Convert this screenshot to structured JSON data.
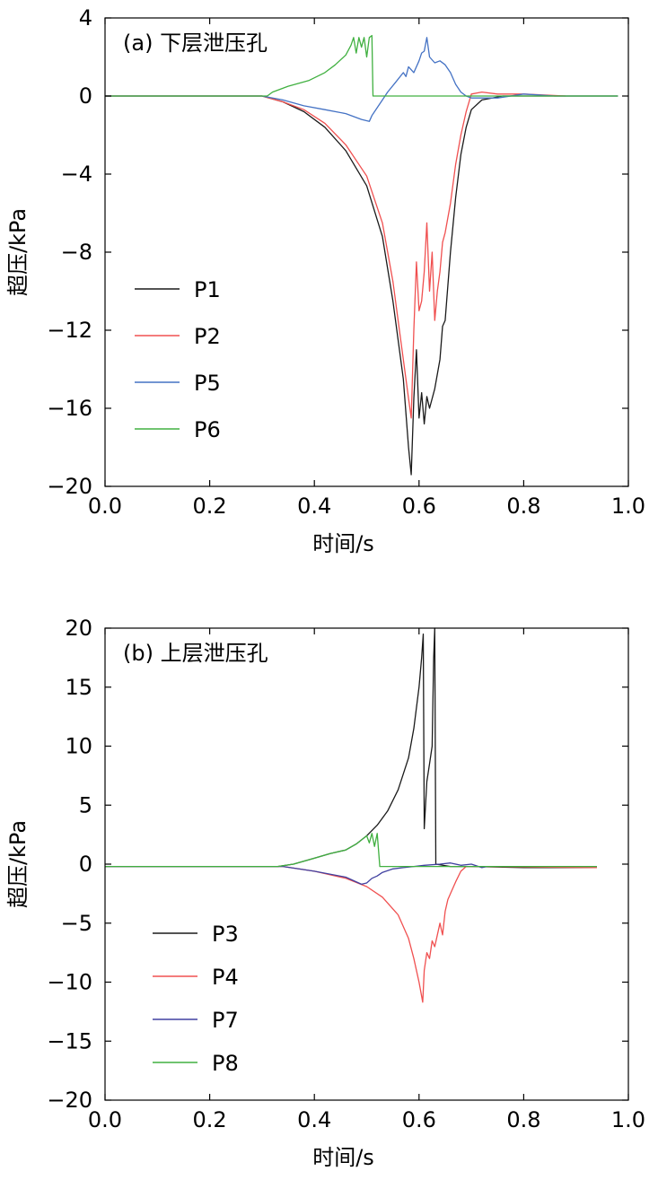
{
  "chart_data": [
    {
      "type": "line",
      "panel_label": "(a) 下层泄压孔",
      "xlabel": "时间/s",
      "ylabel": "超压/kPa",
      "xlim": [
        0,
        1.0
      ],
      "ylim": [
        -20,
        4
      ],
      "xticks": [
        "0.0",
        "0.2",
        "0.4",
        "0.6",
        "0.8",
        "1.0"
      ],
      "yticks": [
        "4",
        "0",
        "−4",
        "−8",
        "−12",
        "−16",
        "−20"
      ],
      "legend_position": "left",
      "series": [
        {
          "name": "P1",
          "color": "#1a1a1a",
          "points": [
            [
              0.0,
              0
            ],
            [
              0.3,
              0
            ],
            [
              0.34,
              -0.3
            ],
            [
              0.38,
              -0.8
            ],
            [
              0.42,
              -1.6
            ],
            [
              0.46,
              -2.8
            ],
            [
              0.5,
              -4.6
            ],
            [
              0.53,
              -7.2
            ],
            [
              0.55,
              -10.5
            ],
            [
              0.57,
              -14.5
            ],
            [
              0.58,
              -18.0
            ],
            [
              0.585,
              -19.4
            ],
            [
              0.59,
              -15.5
            ],
            [
              0.595,
              -13.0
            ],
            [
              0.6,
              -16.5
            ],
            [
              0.605,
              -15.2
            ],
            [
              0.61,
              -16.8
            ],
            [
              0.615,
              -15.4
            ],
            [
              0.62,
              -16.0
            ],
            [
              0.63,
              -15.0
            ],
            [
              0.64,
              -13.5
            ],
            [
              0.645,
              -11.8
            ],
            [
              0.65,
              -11.5
            ],
            [
              0.66,
              -8.0
            ],
            [
              0.67,
              -5.2
            ],
            [
              0.68,
              -3.0
            ],
            [
              0.69,
              -1.6
            ],
            [
              0.7,
              -0.7
            ],
            [
              0.72,
              -0.2
            ],
            [
              0.76,
              0
            ],
            [
              0.98,
              0
            ]
          ]
        },
        {
          "name": "P2",
          "color": "#f05050",
          "points": [
            [
              0.0,
              0
            ],
            [
              0.3,
              0
            ],
            [
              0.34,
              -0.3
            ],
            [
              0.38,
              -0.7
            ],
            [
              0.42,
              -1.4
            ],
            [
              0.46,
              -2.5
            ],
            [
              0.5,
              -4.1
            ],
            [
              0.53,
              -6.5
            ],
            [
              0.55,
              -9.5
            ],
            [
              0.565,
              -12.5
            ],
            [
              0.58,
              -15.5
            ],
            [
              0.585,
              -16.5
            ],
            [
              0.59,
              -12.0
            ],
            [
              0.595,
              -8.5
            ],
            [
              0.6,
              -11.0
            ],
            [
              0.605,
              -10.5
            ],
            [
              0.61,
              -9.0
            ],
            [
              0.615,
              -6.5
            ],
            [
              0.62,
              -10.0
            ],
            [
              0.625,
              -8.0
            ],
            [
              0.63,
              -11.5
            ],
            [
              0.635,
              -10.0
            ],
            [
              0.64,
              -9.0
            ],
            [
              0.645,
              -7.5
            ],
            [
              0.65,
              -7.0
            ],
            [
              0.66,
              -5.5
            ],
            [
              0.67,
              -3.5
            ],
            [
              0.68,
              -2.0
            ],
            [
              0.69,
              -0.8
            ],
            [
              0.7,
              0.1
            ],
            [
              0.72,
              0.2
            ],
            [
              0.75,
              0.1
            ],
            [
              0.8,
              0.1
            ],
            [
              0.88,
              0.0
            ]
          ]
        },
        {
          "name": "P5",
          "color": "#4472c4",
          "points": [
            [
              0.0,
              0
            ],
            [
              0.3,
              0
            ],
            [
              0.34,
              -0.2
            ],
            [
              0.38,
              -0.5
            ],
            [
              0.42,
              -0.7
            ],
            [
              0.46,
              -0.9
            ],
            [
              0.49,
              -1.2
            ],
            [
              0.505,
              -1.3
            ],
            [
              0.51,
              -1.0
            ],
            [
              0.52,
              -0.6
            ],
            [
              0.53,
              -0.2
            ],
            [
              0.54,
              0.2
            ],
            [
              0.555,
              0.7
            ],
            [
              0.57,
              1.2
            ],
            [
              0.575,
              1.0
            ],
            [
              0.58,
              1.5
            ],
            [
              0.59,
              1.2
            ],
            [
              0.6,
              1.8
            ],
            [
              0.605,
              2.2
            ],
            [
              0.61,
              2.3
            ],
            [
              0.615,
              3.0
            ],
            [
              0.62,
              2.0
            ],
            [
              0.63,
              1.7
            ],
            [
              0.64,
              1.8
            ],
            [
              0.65,
              1.6
            ],
            [
              0.66,
              1.2
            ],
            [
              0.67,
              0.6
            ],
            [
              0.68,
              0.2
            ],
            [
              0.69,
              0
            ],
            [
              0.7,
              -0.1
            ],
            [
              0.75,
              -0.1
            ],
            [
              0.8,
              0.1
            ],
            [
              0.86,
              0
            ],
            [
              0.98,
              0
            ]
          ]
        },
        {
          "name": "P6",
          "color": "#40b040",
          "points": [
            [
              0.0,
              0
            ],
            [
              0.31,
              0
            ],
            [
              0.32,
              0.2
            ],
            [
              0.35,
              0.5
            ],
            [
              0.39,
              0.8
            ],
            [
              0.42,
              1.2
            ],
            [
              0.44,
              1.6
            ],
            [
              0.46,
              2.1
            ],
            [
              0.47,
              2.6
            ],
            [
              0.475,
              3.0
            ],
            [
              0.48,
              2.2
            ],
            [
              0.485,
              3.0
            ],
            [
              0.49,
              2.5
            ],
            [
              0.495,
              3.0
            ],
            [
              0.5,
              2.0
            ],
            [
              0.505,
              3.0
            ],
            [
              0.51,
              3.1
            ],
            [
              0.512,
              0
            ],
            [
              0.98,
              0
            ]
          ]
        }
      ]
    },
    {
      "type": "line",
      "panel_label": "(b) 上层泄压孔",
      "xlabel": "时间/s",
      "ylabel": "超压/kPa",
      "xlim": [
        0,
        1.0
      ],
      "ylim": [
        -20,
        20
      ],
      "xticks": [
        "0.0",
        "0.2",
        "0.4",
        "0.6",
        "0.8",
        "1.0"
      ],
      "yticks": [
        "20",
        "15",
        "10",
        "5",
        "0",
        "−5",
        "−10",
        "−15",
        "−20"
      ],
      "legend_position": "left",
      "series": [
        {
          "name": "P3",
          "color": "#1a1a1a",
          "points": [
            [
              0.0,
              -0.2
            ],
            [
              0.33,
              -0.2
            ],
            [
              0.36,
              0.0
            ],
            [
              0.4,
              0.5
            ],
            [
              0.43,
              0.9
            ],
            [
              0.46,
              1.2
            ],
            [
              0.48,
              1.7
            ],
            [
              0.5,
              2.4
            ],
            [
              0.52,
              3.3
            ],
            [
              0.54,
              4.5
            ],
            [
              0.56,
              6.3
            ],
            [
              0.58,
              9.0
            ],
            [
              0.59,
              11.5
            ],
            [
              0.6,
              15.0
            ],
            [
              0.605,
              17.5
            ],
            [
              0.608,
              19.5
            ],
            [
              0.61,
              3.0
            ],
            [
              0.615,
              7.0
            ],
            [
              0.62,
              8.5
            ],
            [
              0.625,
              10.0
            ],
            [
              0.628,
              17.5
            ],
            [
              0.63,
              20.0
            ],
            [
              0.632,
              0.0
            ],
            [
              0.66,
              -0.2
            ],
            [
              0.7,
              -0.2
            ],
            [
              0.8,
              -0.3
            ],
            [
              0.94,
              -0.3
            ]
          ]
        },
        {
          "name": "P4",
          "color": "#f05050",
          "points": [
            [
              0.0,
              -0.2
            ],
            [
              0.34,
              -0.2
            ],
            [
              0.4,
              -0.6
            ],
            [
              0.46,
              -1.2
            ],
            [
              0.5,
              -1.9
            ],
            [
              0.53,
              -2.8
            ],
            [
              0.56,
              -4.3
            ],
            [
              0.58,
              -6.3
            ],
            [
              0.59,
              -8.0
            ],
            [
              0.6,
              -10.0
            ],
            [
              0.607,
              -11.7
            ],
            [
              0.61,
              -9.0
            ],
            [
              0.615,
              -7.5
            ],
            [
              0.62,
              -8.0
            ],
            [
              0.625,
              -6.5
            ],
            [
              0.63,
              -7.0
            ],
            [
              0.64,
              -5.0
            ],
            [
              0.645,
              -6.0
            ],
            [
              0.65,
              -4.0
            ],
            [
              0.655,
              -3.0
            ],
            [
              0.66,
              -2.5
            ],
            [
              0.67,
              -1.5
            ],
            [
              0.68,
              -0.6
            ],
            [
              0.69,
              -0.2
            ],
            [
              0.72,
              -0.2
            ],
            [
              0.94,
              -0.3
            ]
          ]
        },
        {
          "name": "P7",
          "color": "#4040a0",
          "points": [
            [
              0.0,
              -0.2
            ],
            [
              0.34,
              -0.2
            ],
            [
              0.4,
              -0.6
            ],
            [
              0.46,
              -1.1
            ],
            [
              0.49,
              -1.7
            ],
            [
              0.5,
              -1.6
            ],
            [
              0.51,
              -1.2
            ],
            [
              0.52,
              -1.0
            ],
            [
              0.53,
              -0.7
            ],
            [
              0.55,
              -0.4
            ],
            [
              0.57,
              -0.3
            ],
            [
              0.59,
              -0.2
            ],
            [
              0.61,
              -0.1
            ],
            [
              0.64,
              0.0
            ],
            [
              0.66,
              0.1
            ],
            [
              0.68,
              -0.1
            ],
            [
              0.7,
              0.0
            ],
            [
              0.72,
              -0.3
            ],
            [
              0.73,
              -0.2
            ]
          ]
        },
        {
          "name": "P8",
          "color": "#40b040",
          "points": [
            [
              0.0,
              -0.2
            ],
            [
              0.33,
              -0.2
            ],
            [
              0.36,
              0.0
            ],
            [
              0.4,
              0.5
            ],
            [
              0.43,
              0.9
            ],
            [
              0.46,
              1.2
            ],
            [
              0.48,
              1.7
            ],
            [
              0.5,
              2.4
            ],
            [
              0.505,
              1.8
            ],
            [
              0.51,
              2.6
            ],
            [
              0.515,
              1.5
            ],
            [
              0.52,
              2.6
            ],
            [
              0.525,
              -0.2
            ],
            [
              0.6,
              -0.2
            ],
            [
              0.7,
              -0.2
            ],
            [
              0.8,
              -0.2
            ],
            [
              0.94,
              -0.2
            ]
          ]
        }
      ]
    }
  ]
}
